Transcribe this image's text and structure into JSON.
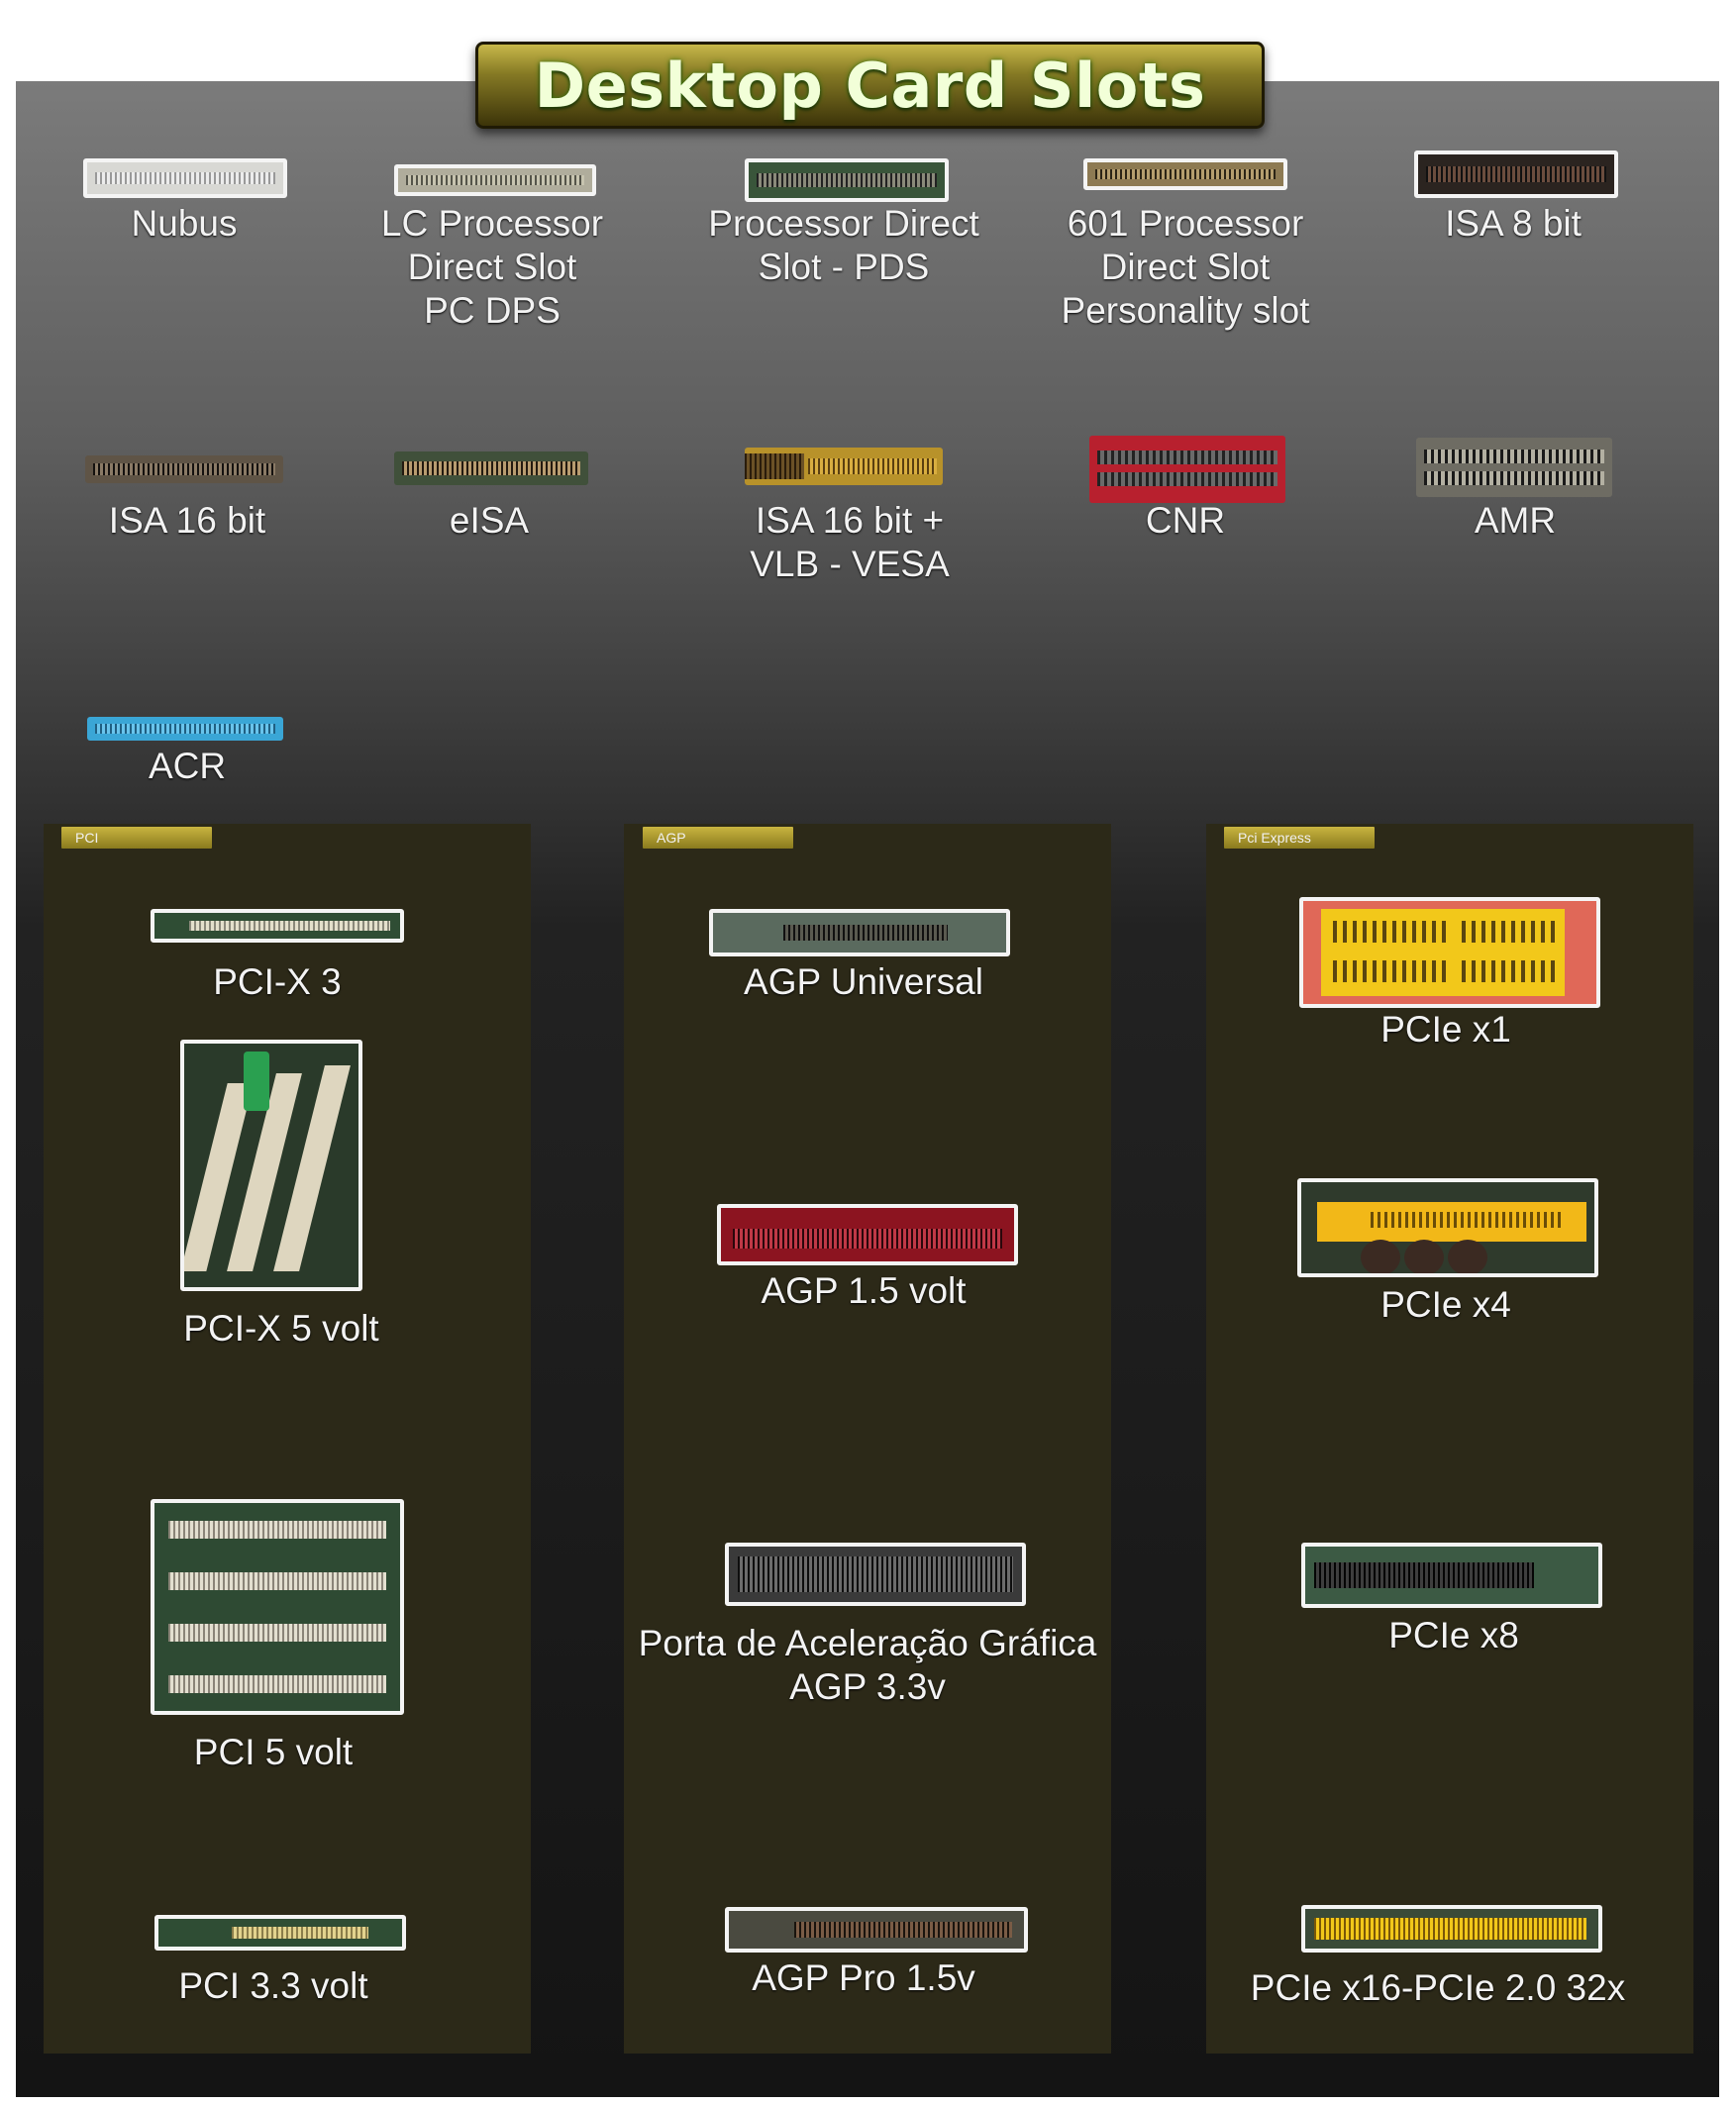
{
  "title": "Desktop Card Slots",
  "legacy_slots": [
    {
      "icon": "nubus-slot-icon",
      "label": "Nubus"
    },
    {
      "icon": "lc-pds-slot-icon",
      "label": "LC Processor\nDirect Slot\nPC DPS"
    },
    {
      "icon": "pds-slot-icon",
      "label": "Processor Direct\nSlot - PDS"
    },
    {
      "icon": "601-pds-slot-icon",
      "label": "601 Processor\nDirect Slot\nPersonality slot"
    },
    {
      "icon": "isa-8bit-slot-icon",
      "label": "ISA 8 bit"
    },
    {
      "icon": "isa-16bit-slot-icon",
      "label": "ISA 16 bit"
    },
    {
      "icon": "eisa-slot-icon",
      "label": "eISA"
    },
    {
      "icon": "isa-vlb-slot-icon",
      "label": "ISA 16 bit +\nVLB - VESA"
    },
    {
      "icon": "cnr-slot-icon",
      "label": "CNR"
    },
    {
      "icon": "amr-slot-icon",
      "label": "AMR"
    },
    {
      "icon": "acr-slot-icon",
      "label": "ACR"
    }
  ],
  "sections": [
    {
      "tab": "PCI",
      "items": [
        {
          "icon": "pci-x-3-slot-icon",
          "label": "PCI-X 3"
        },
        {
          "icon": "pci-x-5v-slot-icon",
          "label": "PCI-X 5 volt"
        },
        {
          "icon": "pci-5v-slot-icon",
          "label": "PCI 5 volt"
        },
        {
          "icon": "pci-3v3-slot-icon",
          "label": "PCI 3.3 volt"
        }
      ]
    },
    {
      "tab": "AGP",
      "items": [
        {
          "icon": "agp-universal-slot-icon",
          "label": "AGP Universal"
        },
        {
          "icon": "agp-1v5-slot-icon",
          "label": "AGP 1.5 volt"
        },
        {
          "icon": "agp-3v3-slot-icon",
          "label": "Porta de Aceleração Gráfica\nAGP 3.3v"
        },
        {
          "icon": "agp-pro-slot-icon",
          "label": "AGP Pro 1.5v"
        }
      ]
    },
    {
      "tab": "Pci Express",
      "items": [
        {
          "icon": "pcie-x1-slot-icon",
          "label": "PCIe x1"
        },
        {
          "icon": "pcie-x4-slot-icon",
          "label": "PCIe x4"
        },
        {
          "icon": "pcie-x8-slot-icon",
          "label": "PCIe x8"
        },
        {
          "icon": "pcie-x16-slot-icon",
          "label": "PCIe x16-PCIe 2.0 32x"
        }
      ]
    }
  ],
  "colors": {
    "banner_text": "#f2ffd8",
    "section_bg": "#2c2918",
    "tab_gold": "#c9b540",
    "acr_blue": "#3aa6d6",
    "cnr_red": "#b8202e",
    "pcie_yellow": "#f2c81a",
    "agp_red": "#8c1420"
  }
}
